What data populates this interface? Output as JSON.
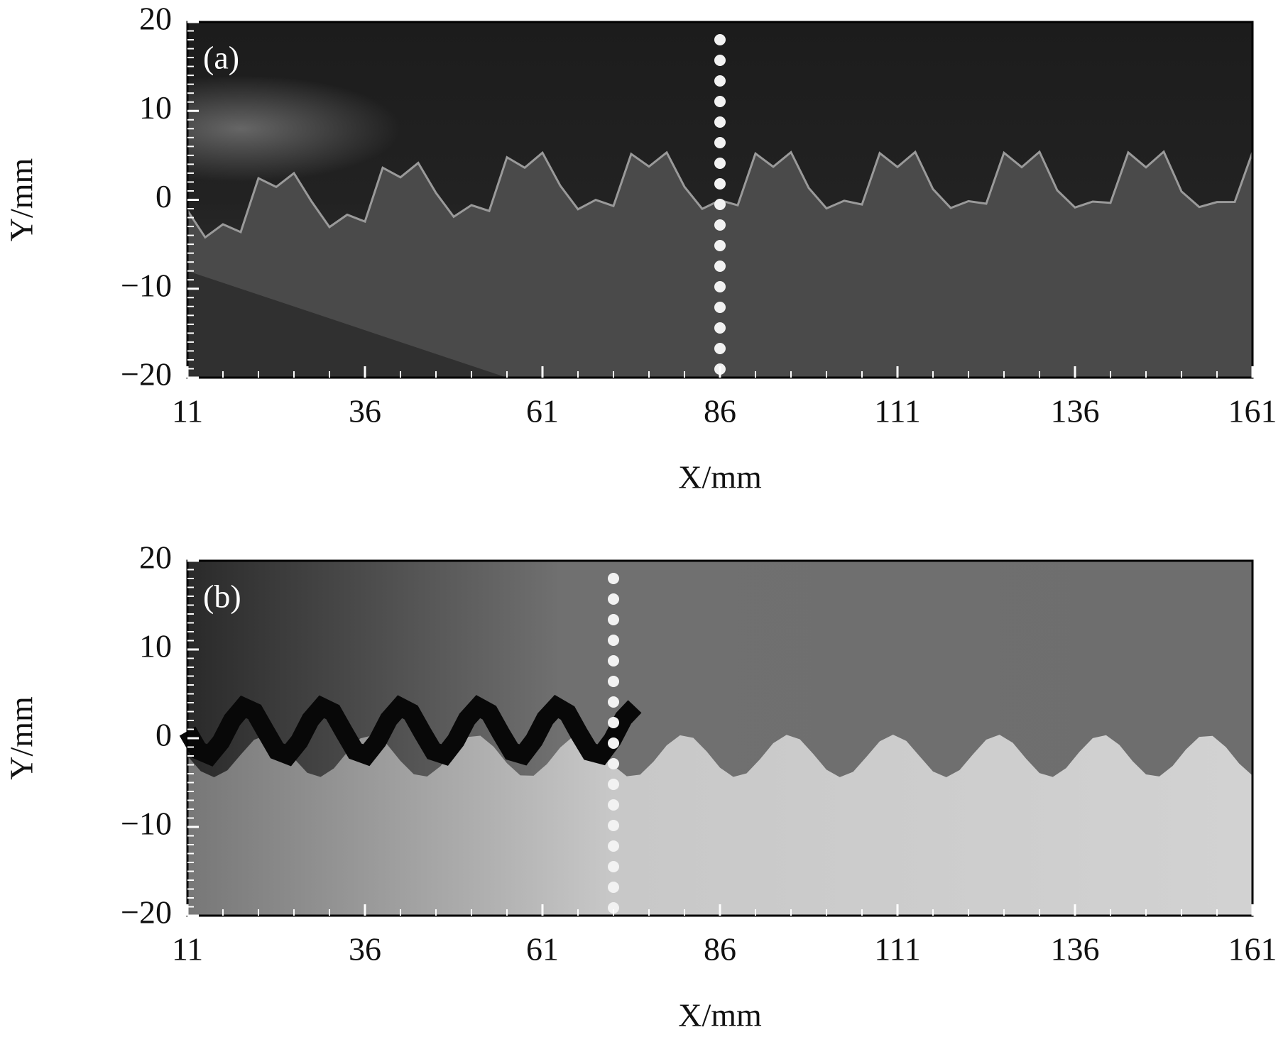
{
  "chart_data": [
    {
      "type": "image",
      "panel_label": "(a)",
      "xlabel": "X/mm",
      "ylabel": "Y/mm",
      "xlim": [
        11,
        161
      ],
      "ylim": [
        -20,
        20
      ],
      "xticks": [
        11,
        36,
        61,
        86,
        111,
        136,
        161
      ],
      "yticks": [
        {
          "value": -20,
          "label": "−20"
        },
        {
          "value": -10,
          "label": "−10"
        },
        0,
        10,
        20
      ],
      "xminorticks": [
        16,
        21,
        26,
        31,
        41,
        46,
        51,
        56,
        66,
        71,
        76,
        81,
        91,
        96,
        101,
        106,
        116,
        121,
        126,
        131,
        141,
        146,
        151,
        156
      ],
      "yminorticks": [
        -19,
        -18,
        -17,
        -16,
        -15,
        -14,
        -13,
        -12,
        -11,
        -9,
        -8,
        -7,
        -6,
        -5,
        -4,
        -3,
        -2,
        -1,
        1,
        2,
        3,
        4,
        5,
        6,
        7,
        8,
        9,
        11,
        12,
        13,
        14,
        15,
        16,
        17,
        18,
        19
      ],
      "dotted_line_x": 86
    },
    {
      "type": "image",
      "panel_label": "(b)",
      "xlabel": "X/mm",
      "ylabel": "Y/mm",
      "xlim": [
        11,
        161
      ],
      "ylim": [
        -20,
        20
      ],
      "xticks": [
        11,
        36,
        61,
        86,
        111,
        136,
        161
      ],
      "yticks": [
        {
          "value": -20,
          "label": "−20"
        },
        {
          "value": -10,
          "label": "−10"
        },
        0,
        10,
        20
      ],
      "xminorticks": [
        16,
        21,
        26,
        31,
        41,
        46,
        51,
        56,
        66,
        71,
        76,
        81,
        91,
        96,
        101,
        106,
        116,
        121,
        126,
        131,
        141,
        146,
        151,
        156
      ],
      "yminorticks": [
        -19,
        -18,
        -17,
        -16,
        -15,
        -14,
        -13,
        -12,
        -11,
        -9,
        -8,
        -7,
        -6,
        -5,
        -4,
        -3,
        -2,
        -1,
        1,
        2,
        3,
        4,
        5,
        6,
        7,
        8,
        9,
        11,
        12,
        13,
        14,
        15,
        16,
        17,
        18,
        19
      ],
      "dotted_line_x": 71
    }
  ]
}
